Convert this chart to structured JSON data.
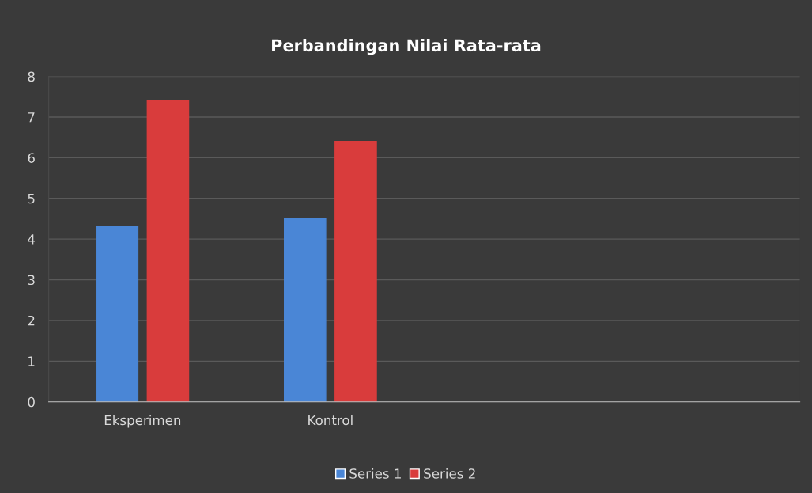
{
  "chart_data": {
    "type": "bar",
    "title": "Perbandingan Nilai Rata-rata",
    "categories": [
      "Eksperimen",
      "Kontrol",
      null,
      null
    ],
    "series": [
      {
        "name": "Series 1",
        "color": "#4a86d6",
        "values": [
          4.3,
          4.5,
          null,
          null
        ]
      },
      {
        "name": "Series 2",
        "color": "#d93c3c",
        "values": [
          7.4,
          6.4,
          null,
          null
        ]
      }
    ],
    "ylim": [
      0,
      8
    ],
    "yticks": [
      0,
      1,
      2,
      3,
      4,
      5,
      6,
      7,
      8
    ],
    "grid": "y",
    "legend": "bottom"
  }
}
